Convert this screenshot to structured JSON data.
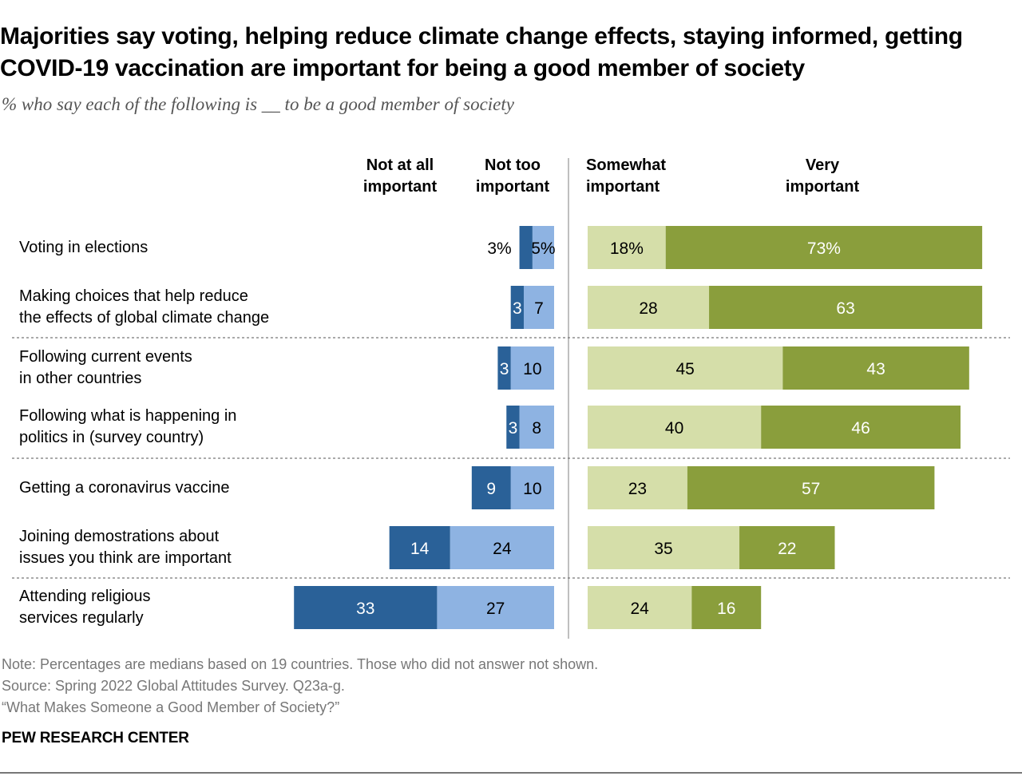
{
  "title": "Majorities say voting, helping reduce climate change effects, staying informed, getting COVID-19 vaccination are important for being a good member of society",
  "subtitle": "% who say each of the following is __ to be a good member of society",
  "chart_data": {
    "type": "bar",
    "orientation": "horizontal-diverging-stacked",
    "title": "Majorities say voting, helping reduce climate change effects, staying informed, getting COVID-19 vaccination are important for being a good member of society",
    "subtitle": "% who say each of the following is __ to be a good member of society",
    "categories": [
      "Voting in elections",
      "Making choices that help reduce\nthe effects of global climate change",
      "Following current events\nin other countries",
      "Following what is happening in\npolitics in (survey country)",
      "Getting a coronavirus vaccine",
      "Joining demostrations about\nissues you think are important",
      "Attending religious\nservices regularly"
    ],
    "series": [
      {
        "name": "Not at all important",
        "side": "left",
        "color": "#2a6198",
        "values": [
          3,
          3,
          3,
          3,
          9,
          14,
          33
        ]
      },
      {
        "name": "Not too important",
        "side": "left",
        "color": "#8eb3e2",
        "values": [
          5,
          7,
          10,
          8,
          10,
          24,
          27
        ]
      },
      {
        "name": "Somewhat important",
        "side": "right",
        "color": "#d5dea9",
        "values": [
          18,
          28,
          45,
          40,
          23,
          35,
          24
        ]
      },
      {
        "name": "Very important",
        "side": "right",
        "color": "#8a9e3c",
        "values": [
          73,
          63,
          43,
          46,
          57,
          22,
          16
        ]
      }
    ],
    "column_headers": [
      "Not at all\nimportant",
      "Not too\nimportant",
      "Somewhat\nimportant",
      "Very\nimportant"
    ],
    "first_row_percent_sign": true,
    "group_separators_after_rows": [
      2,
      4,
      6
    ],
    "unit": "%"
  },
  "notes": {
    "note": "Note: Percentages are medians based on 19 countries. Those who did not answer not shown.",
    "source": "Source: Spring 2022 Global Attitudes Survey. Q23a-g.",
    "report": "“What Makes Someone a Good Member of Society?”"
  },
  "brand": "PEW RESEARCH CENTER"
}
